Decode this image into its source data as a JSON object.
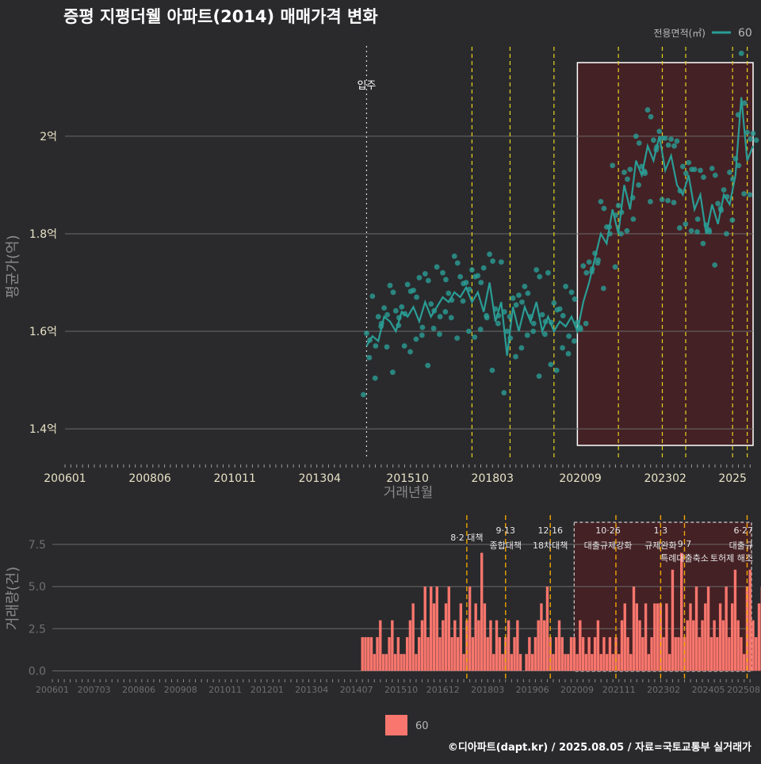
{
  "chart_data": [
    {
      "type": "line",
      "title": "증평 지평더웰 아파트(2014) 매매가격 변화",
      "xlabel": "거래년월",
      "ylabel": "평균가(억)",
      "x_ticks": [
        "200601",
        "200806",
        "201011",
        "201304",
        "201510",
        "201803",
        "202009",
        "202302",
        "2025"
      ],
      "y_ticks": [
        "1.4억",
        "1.6억",
        "1.8억",
        "2억"
      ],
      "y_tick_values": [
        1.4,
        1.6,
        1.8,
        2.0
      ],
      "xlim": [
        "2006-01",
        "2025-08"
      ],
      "ylim": [
        1.34,
        2.19
      ],
      "grid": "horizontal",
      "legend": {
        "title": "전용면적(㎡)",
        "entries": [
          "60"
        ],
        "position": "top-right"
      },
      "annotation": {
        "label": "입주",
        "date": "2014-08"
      },
      "event_lines": [
        "2017-08",
        "2018-09",
        "2019-12",
        "2021-10",
        "2023-01",
        "2023-09",
        "2025-01",
        "2025-06"
      ],
      "highlight_range": [
        "2020-08",
        "2025-08"
      ],
      "series": [
        {
          "name": "60",
          "color": "#2a9d95",
          "points": [
            [
              "2014-08",
              1.57
            ],
            [
              "2014-10",
              1.59
            ],
            [
              "2014-12",
              1.58
            ],
            [
              "2015-02",
              1.63
            ],
            [
              "2015-04",
              1.62
            ],
            [
              "2015-06",
              1.6
            ],
            [
              "2015-08",
              1.64
            ],
            [
              "2015-10",
              1.63
            ],
            [
              "2015-12",
              1.65
            ],
            [
              "2016-02",
              1.62
            ],
            [
              "2016-04",
              1.66
            ],
            [
              "2016-06",
              1.63
            ],
            [
              "2016-08",
              1.65
            ],
            [
              "2016-10",
              1.67
            ],
            [
              "2016-12",
              1.66
            ],
            [
              "2017-02",
              1.68
            ],
            [
              "2017-04",
              1.67
            ],
            [
              "2017-06",
              1.69
            ],
            [
              "2017-08",
              1.66
            ],
            [
              "2017-10",
              1.68
            ],
            [
              "2017-12",
              1.64
            ],
            [
              "2018-02",
              1.7
            ],
            [
              "2018-04",
              1.62
            ],
            [
              "2018-06",
              1.66
            ],
            [
              "2018-08",
              1.55
            ],
            [
              "2018-10",
              1.65
            ],
            [
              "2018-12",
              1.6
            ],
            [
              "2019-02",
              1.65
            ],
            [
              "2019-04",
              1.62
            ],
            [
              "2019-06",
              1.66
            ],
            [
              "2019-08",
              1.6
            ],
            [
              "2019-10",
              1.63
            ],
            [
              "2019-12",
              1.6
            ],
            [
              "2020-02",
              1.62
            ],
            [
              "2020-04",
              1.61
            ],
            [
              "2020-06",
              1.63
            ],
            [
              "2020-08",
              1.6
            ],
            [
              "2020-10",
              1.66
            ],
            [
              "2020-12",
              1.7
            ],
            [
              "2021-02",
              1.75
            ],
            [
              "2021-04",
              1.8
            ],
            [
              "2021-06",
              1.78
            ],
            [
              "2021-08",
              1.85
            ],
            [
              "2021-10",
              1.8
            ],
            [
              "2021-12",
              1.9
            ],
            [
              "2022-02",
              1.85
            ],
            [
              "2022-04",
              1.95
            ],
            [
              "2022-06",
              1.92
            ],
            [
              "2022-08",
              1.98
            ],
            [
              "2022-10",
              1.95
            ],
            [
              "2022-12",
              2.0
            ],
            [
              "2023-02",
              1.93
            ],
            [
              "2023-04",
              1.96
            ],
            [
              "2023-06",
              1.9
            ],
            [
              "2023-08",
              1.88
            ],
            [
              "2023-10",
              1.92
            ],
            [
              "2023-12",
              1.85
            ],
            [
              "2024-02",
              1.88
            ],
            [
              "2024-04",
              1.8
            ],
            [
              "2024-06",
              1.86
            ],
            [
              "2024-08",
              1.82
            ],
            [
              "2024-10",
              1.88
            ],
            [
              "2024-12",
              1.86
            ],
            [
              "2025-02",
              1.92
            ],
            [
              "2025-04",
              2.08
            ],
            [
              "2025-06",
              1.95
            ],
            [
              "2025-08",
              1.98
            ]
          ]
        }
      ]
    },
    {
      "type": "bar",
      "ylabel": "거래량(건)",
      "x_ticks": [
        "200601",
        "200703",
        "200806",
        "200908",
        "201011",
        "201201",
        "201304",
        "201407",
        "201510",
        "201612",
        "201803",
        "201906",
        "202009",
        "202111",
        "202302",
        "202405",
        "202508"
      ],
      "y_ticks": [
        "0.0",
        "2.5",
        "5.0",
        "7.5"
      ],
      "y_tick_values": [
        0,
        2.5,
        5.0,
        7.5
      ],
      "ylim": [
        -0.4,
        9.0
      ],
      "legend": {
        "entries": [
          "60"
        ],
        "position": "bottom"
      },
      "series": [
        {
          "name": "60",
          "color": "#f8766d",
          "values": [
            2,
            2,
            2,
            2,
            1,
            2,
            3,
            1,
            1,
            2,
            3,
            1,
            2,
            1,
            1,
            2,
            3,
            4,
            1,
            2,
            3,
            5,
            2,
            5,
            4,
            5,
            2,
            3,
            4,
            5,
            2,
            3,
            2,
            4,
            1,
            3,
            5,
            2,
            4,
            3,
            7,
            4,
            2,
            3,
            1,
            3,
            2,
            1,
            2,
            3,
            1,
            2,
            3,
            1,
            0,
            1,
            2,
            1,
            2,
            3,
            4,
            3,
            5,
            2,
            1,
            2,
            3,
            2,
            1,
            1,
            2,
            2,
            1,
            3,
            2,
            1,
            2,
            1,
            2,
            3,
            1,
            2,
            1,
            2,
            1,
            2,
            1,
            3,
            4,
            2,
            1,
            5,
            4,
            3,
            2,
            4,
            1,
            2,
            4,
            4,
            4,
            2,
            4,
            1,
            6,
            2,
            2,
            7,
            2,
            3,
            4,
            3,
            5,
            2,
            3,
            4,
            5,
            2,
            3,
            2,
            4,
            3,
            5,
            2,
            4,
            6,
            3,
            2,
            1,
            5,
            6,
            3,
            2,
            4,
            5,
            3,
            1,
            2,
            3,
            4,
            2,
            5,
            3,
            2,
            4,
            5,
            6,
            3,
            2,
            4,
            5,
            3,
            5,
            2,
            4,
            3,
            6,
            2,
            3,
            4,
            2,
            5,
            3,
            2,
            4,
            6,
            3,
            5,
            2,
            3,
            4,
            5,
            2,
            3,
            4,
            6,
            2,
            5,
            3,
            1
          ]
        }
      ],
      "event_labels": [
        {
          "date": "2017-08",
          "lines": [
            "8·2 대책"
          ]
        },
        {
          "date": "2018-09",
          "lines": [
            "9·13",
            "종합대책"
          ]
        },
        {
          "date": "2019-12",
          "lines": [
            "12·16",
            "18차대책"
          ]
        },
        {
          "date": "2021-10",
          "lines": [
            "10·26",
            "대출규제강화"
          ]
        },
        {
          "date": "2023-01",
          "lines": [
            "1·3",
            "규제완화"
          ]
        },
        {
          "date": "2023-09",
          "lines": [
            "9·7",
            "특례대출축소"
          ]
        },
        {
          "date": "2025-06",
          "lines": [
            "6·27",
            "대출규",
            "토허제 해조"
          ]
        }
      ]
    }
  ],
  "footer": {
    "credit": "©디아파트(dapt.kr) / 2025.08.05 / 자료=국토교통부 실거래가"
  }
}
